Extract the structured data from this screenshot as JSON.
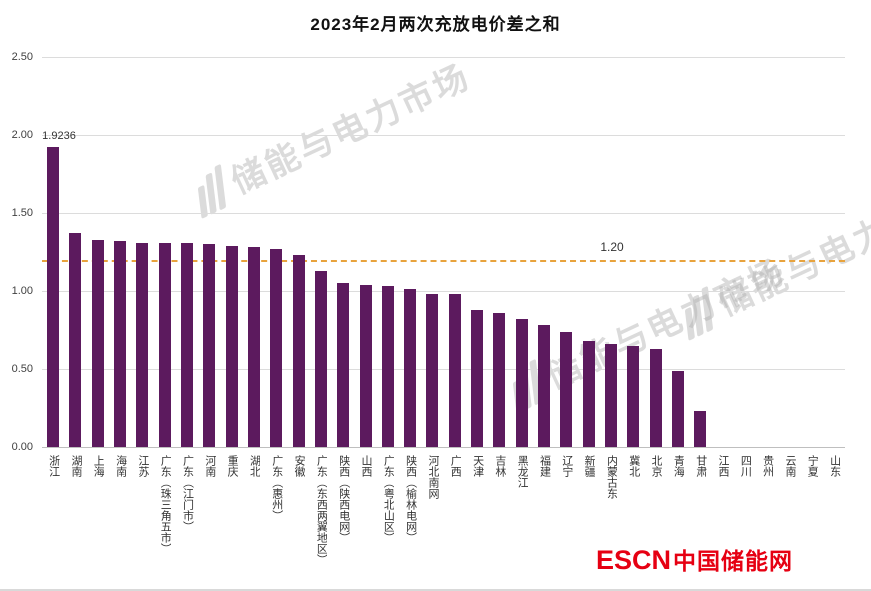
{
  "chart_data": {
    "type": "bar",
    "title": "2023年2月两次充放电价差之和",
    "categories": [
      "浙江",
      "湖南",
      "上海",
      "海南",
      "江苏",
      "广东（珠三角五市）",
      "广东（江门市）",
      "河南",
      "重庆",
      "湖北",
      "广东（惠州）",
      "安徽",
      "广东（东西两翼地区）",
      "陕西（陕西电网）",
      "山西",
      "广东（粤北山区）",
      "陕西（榆林电网）",
      "河北南网",
      "广西",
      "天津",
      "吉林",
      "黑龙江",
      "福建",
      "辽宁",
      "新疆",
      "内蒙古东",
      "冀北",
      "北京",
      "青海",
      "甘肃",
      "江西",
      "四川",
      "贵州",
      "云南",
      "宁夏",
      "山东"
    ],
    "values": [
      1.9236,
      1.37,
      1.33,
      1.32,
      1.31,
      1.31,
      1.31,
      1.3,
      1.29,
      1.28,
      1.27,
      1.23,
      1.13,
      1.05,
      1.04,
      1.03,
      1.01,
      0.98,
      0.98,
      0.88,
      0.86,
      0.82,
      0.78,
      0.74,
      0.68,
      0.66,
      0.65,
      0.63,
      0.49,
      0.23,
      0,
      0,
      0,
      0,
      0,
      0
    ],
    "ylim": [
      0,
      2.5
    ],
    "yticks": [
      "2.50",
      "2.00",
      "1.50",
      "1.00",
      "0.50",
      "0.00"
    ],
    "grid": true,
    "legend": "none",
    "bar_color": "#5c1a5e",
    "reference_line": {
      "value": 1.2,
      "label": "1.20",
      "color": "#e8a33d",
      "style": "dashed"
    },
    "annotations": [
      {
        "text": "1.9236",
        "category": "浙江"
      }
    ]
  },
  "watermark": {
    "text": "储能与电力市场",
    "icon": "escn-stripes-logo-icon",
    "color": "#b0b0b0"
  },
  "footer_logo": {
    "en": "ESCN",
    "zh": "中国储能网",
    "color": "#e60012"
  }
}
